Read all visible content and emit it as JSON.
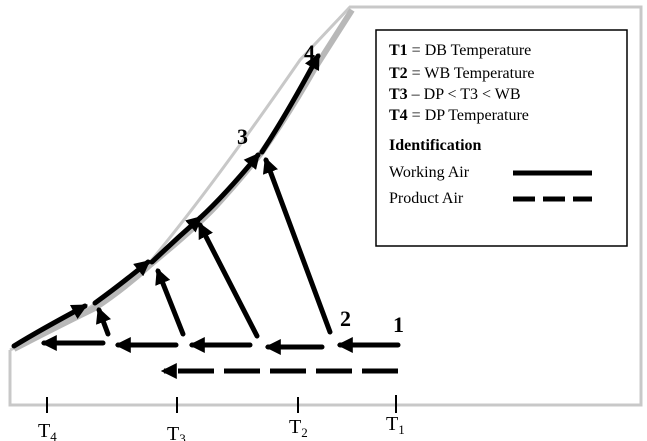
{
  "points": {
    "p1": "1",
    "p2": "2",
    "p3": "3",
    "p4": "4"
  },
  "axis_ticks": [
    {
      "main": "T",
      "sub": "4"
    },
    {
      "main": "T",
      "sub": "3"
    },
    {
      "main": "T",
      "sub": "2"
    },
    {
      "main": "T",
      "sub": "1"
    }
  ],
  "legend": {
    "definitions": [
      {
        "term": "T1",
        "text": " = DB Temperature"
      },
      {
        "term": "T2",
        "text": " = WB Temperature"
      },
      {
        "term": "T3",
        "text": " – DP < T3 < WB"
      },
      {
        "term": "T4",
        "text": " = DP Temperature"
      }
    ],
    "identification_title": "Identification",
    "working_air_label": "Working Air",
    "product_air_label": "Product Air"
  },
  "colors": {
    "line": "#000000",
    "shadow": "#b8b8b8",
    "chart_border": "#c8c8c8"
  }
}
